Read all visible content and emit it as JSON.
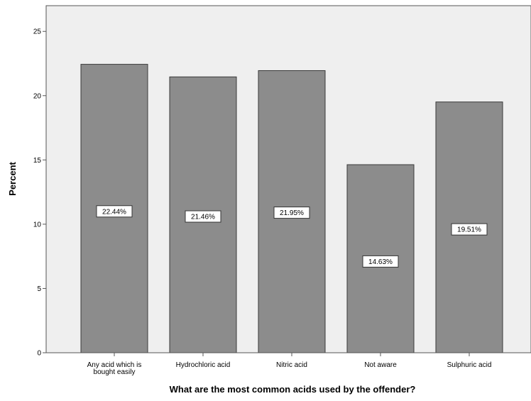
{
  "chart_data": {
    "type": "bar",
    "categories": [
      [
        "Any acid which is",
        "bought easily"
      ],
      [
        "Hydrochloric acid"
      ],
      [
        "Nitric acid"
      ],
      [
        "Not aware"
      ],
      [
        "Sulphuric acid"
      ]
    ],
    "values": [
      22.44,
      21.46,
      21.95,
      14.63,
      19.51
    ],
    "data_labels": [
      "22.44%",
      "21.46%",
      "21.95%",
      "14.63%",
      "19.51%"
    ],
    "label_positions": [
      11.0,
      10.6,
      10.9,
      7.1,
      9.6
    ],
    "xlabel": "What are the most common acids used by the offender?",
    "ylabel": "Percent",
    "ylim": [
      0,
      27
    ],
    "yticks": [
      0,
      5,
      10,
      15,
      20,
      25
    ],
    "grid": false,
    "colors": {
      "plot_background": "#efefef",
      "bar_fill": "#8c8c8c",
      "bar_stroke": "#3a3a3a",
      "label_box_fill": "#ffffff",
      "text": "#000000"
    }
  }
}
